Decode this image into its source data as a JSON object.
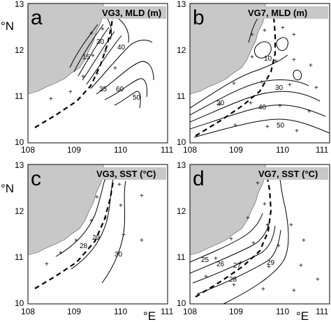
{
  "x_ticks": [
    "108",
    "109",
    "110",
    "111"
  ],
  "y_ticks": [
    "10",
    "11",
    "12",
    "13"
  ],
  "lat_unit": "°N",
  "lon_unit": "°E",
  "panels": [
    {
      "letter": "a",
      "title": "VG3, MLD (m)",
      "contour_labels": [
        "15",
        "30",
        "35",
        "40",
        "50",
        "60"
      ]
    },
    {
      "letter": "b",
      "title": "VG7, MLD (m)",
      "contour_labels": [
        "10",
        "20",
        "30",
        "40",
        "50"
      ]
    },
    {
      "letter": "c",
      "title": "VG3, SST (°C)",
      "contour_labels": [
        "28",
        "29",
        "30"
      ]
    },
    {
      "letter": "d",
      "title": "VG7, SST (°C)",
      "contour_labels": [
        "25",
        "26",
        "27",
        "28",
        "29"
      ]
    }
  ]
}
